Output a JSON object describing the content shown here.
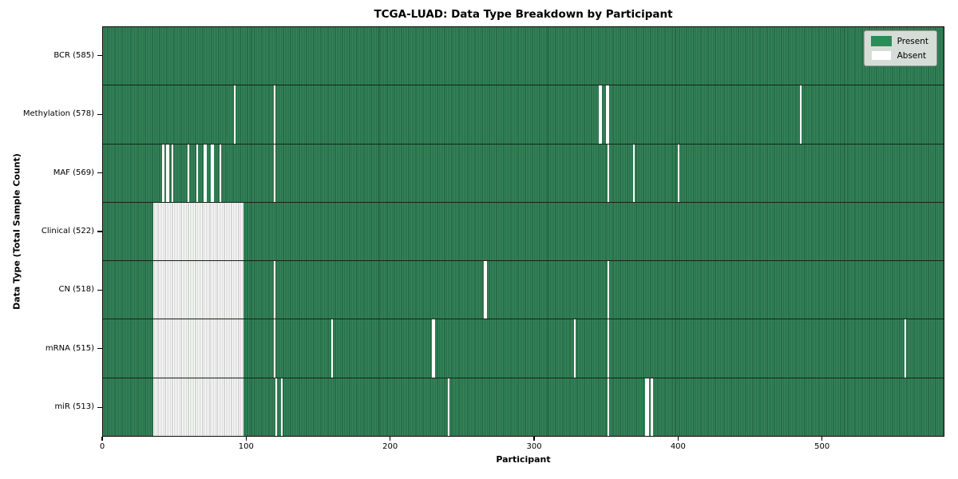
{
  "chart_data": {
    "type": "heatmap",
    "title": "TCGA-LUAD: Data Type Breakdown by Participant",
    "xlabel": "Participant",
    "ylabel": "Data Type (Total Sample Count)",
    "x_range": [
      0,
      585
    ],
    "x_ticks": [
      0,
      100,
      200,
      300,
      400,
      500
    ],
    "grid": "row-dividers-on",
    "legend": {
      "position": "upper right",
      "entries": [
        {
          "label": "Present",
          "color": "#2e8b57"
        },
        {
          "label": "Absent",
          "color": "#ffffff"
        }
      ]
    },
    "rows": [
      {
        "label": "BCR (585)",
        "name": "BCR",
        "count": 585,
        "absent_ranges": []
      },
      {
        "label": "Methylation (578)",
        "name": "Methylation",
        "count": 578,
        "absent_ranges": [
          [
            91,
            91
          ],
          [
            119,
            119
          ],
          [
            345,
            346
          ],
          [
            350,
            351
          ],
          [
            485,
            485
          ]
        ]
      },
      {
        "label": "MAF (569)",
        "name": "MAF",
        "count": 569,
        "absent_ranges": [
          [
            41,
            42
          ],
          [
            44,
            45
          ],
          [
            48,
            48
          ],
          [
            59,
            59
          ],
          [
            65,
            65
          ],
          [
            70,
            71
          ],
          [
            75,
            76
          ],
          [
            81,
            81
          ],
          [
            119,
            119
          ],
          [
            351,
            351
          ],
          [
            369,
            369
          ],
          [
            400,
            400
          ]
        ]
      },
      {
        "label": "Clinical (522)",
        "name": "Clinical",
        "count": 522,
        "absent_ranges": [
          [
            35,
            97
          ]
        ]
      },
      {
        "label": "CN (518)",
        "name": "CN",
        "count": 518,
        "absent_ranges": [
          [
            35,
            97
          ],
          [
            119,
            119
          ],
          [
            265,
            266
          ],
          [
            351,
            351
          ]
        ]
      },
      {
        "label": "mRNA (515)",
        "name": "mRNA",
        "count": 515,
        "absent_ranges": [
          [
            35,
            97
          ],
          [
            119,
            119
          ],
          [
            159,
            159
          ],
          [
            229,
            230
          ],
          [
            328,
            328
          ],
          [
            351,
            351
          ],
          [
            558,
            558
          ]
        ]
      },
      {
        "label": "miR (513)",
        "name": "miR",
        "count": 513,
        "absent_ranges": [
          [
            35,
            97
          ],
          [
            120,
            120
          ],
          [
            124,
            124
          ],
          [
            240,
            240
          ],
          [
            351,
            351
          ],
          [
            377,
            379
          ],
          [
            381,
            382
          ]
        ]
      }
    ],
    "colors": {
      "present": "#2e8b57",
      "present_stripe_dark": "#1d5134",
      "absent": "#ffffff",
      "absent_stripe_gray": "#a9ada9",
      "row_divider": "#13231a",
      "axis": "#000000"
    }
  }
}
